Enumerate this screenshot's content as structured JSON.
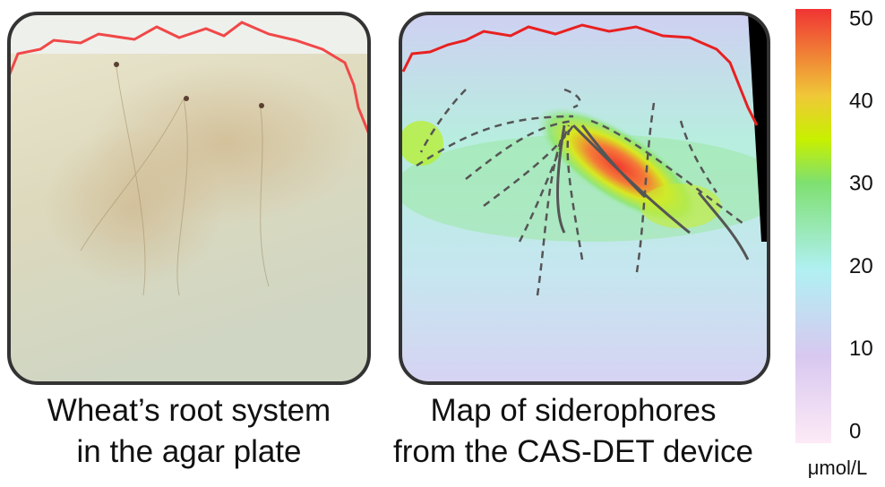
{
  "panels": [
    {
      "caption": [
        "Wheat’s root system",
        "in the agar plate"
      ]
    },
    {
      "caption": [
        "Map of siderophores",
        "from the CAS-DET device"
      ]
    }
  ],
  "colorbar": {
    "lim": [
      0,
      50
    ],
    "ticks": [
      0,
      10,
      20,
      30,
      40,
      50
    ],
    "unit": "μmol/L"
  }
}
